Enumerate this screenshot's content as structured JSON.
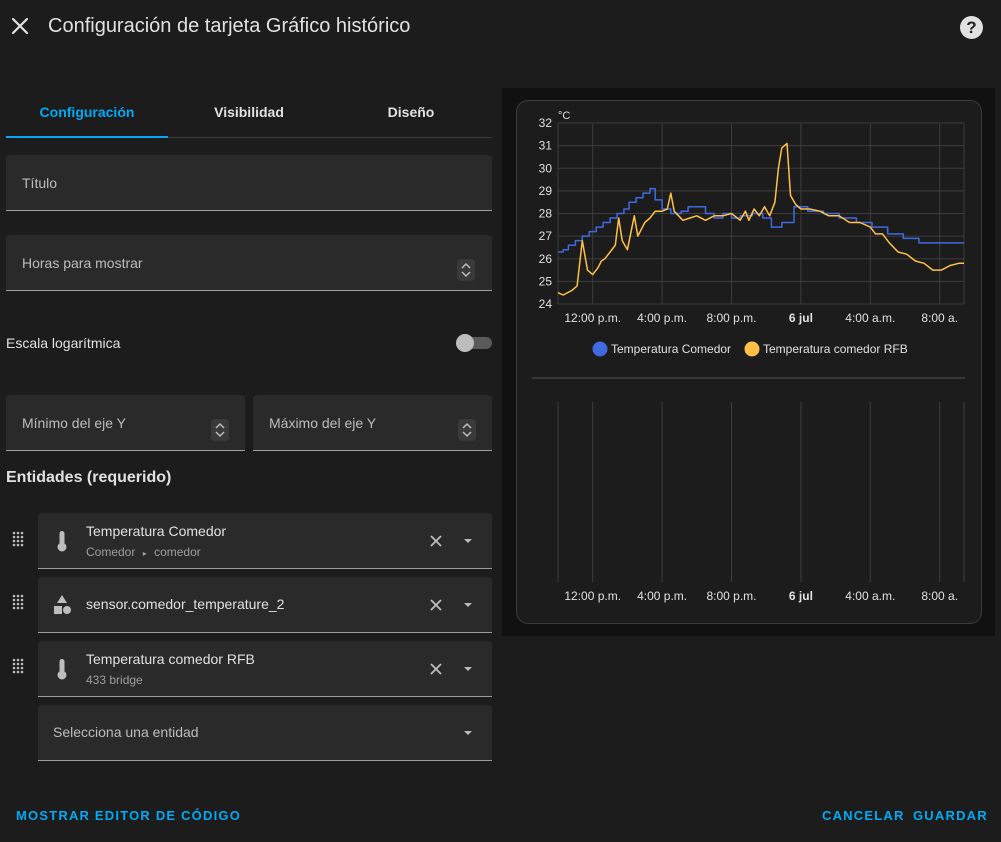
{
  "header": {
    "title": "Configuración de tarjeta Gráfico histórico"
  },
  "tabs": [
    "Configuración",
    "Visibilidad",
    "Diseño"
  ],
  "fields": {
    "title": {
      "label": "Título"
    },
    "hours": {
      "label": "Horas para mostrar"
    },
    "log_scale": {
      "label": "Escala logarítmica"
    },
    "y_min": {
      "label": "Mínimo del eje Y"
    },
    "y_max": {
      "label": "Máximo del eje Y"
    }
  },
  "entities": {
    "title": "Entidades (requerido)",
    "items": [
      {
        "name": "Temperatura Comedor",
        "area": "Comedor",
        "device": "comedor",
        "icon": "thermometer-icon"
      },
      {
        "name": "sensor.comedor_temperature_2",
        "icon": "shapes-icon"
      },
      {
        "name": "Temperatura comedor RFB",
        "subtitle": "433 bridge",
        "icon": "thermometer-icon"
      }
    ],
    "select_placeholder": "Selecciona una entidad"
  },
  "footer": {
    "code_editor": "MOSTRAR EDITOR DE CÓDIGO",
    "cancel": "CANCELAR",
    "save": "GUARDAR"
  },
  "colors": {
    "accent": "#03a9f4",
    "series1": "#4169e1",
    "series2": "#ffc145"
  },
  "chart_data": {
    "type": "line",
    "unit_label": "°C",
    "ylim": [
      24,
      32
    ],
    "yticks": [
      24,
      25,
      26,
      27,
      28,
      29,
      30,
      31,
      32
    ],
    "xlim": [
      0,
      23.4
    ],
    "xticks": [
      {
        "x": 2,
        "label": "12:00 p.m.",
        "bold": false
      },
      {
        "x": 6,
        "label": "4:00 p.m.",
        "bold": false
      },
      {
        "x": 10,
        "label": "8:00 p.m.",
        "bold": false
      },
      {
        "x": 14,
        "label": "6 jul",
        "bold": true
      },
      {
        "x": 18,
        "label": "4:00 a.m.",
        "bold": false
      },
      {
        "x": 22,
        "label": "8:00 a.",
        "bold": false
      }
    ],
    "series": [
      {
        "name": "Temperatura Comedor",
        "step": true,
        "points": [
          [
            0,
            26.3
          ],
          [
            0.3,
            26.4
          ],
          [
            0.6,
            26.6
          ],
          [
            1,
            26.8
          ],
          [
            1.4,
            27
          ],
          [
            1.8,
            27.2
          ],
          [
            2.2,
            27.4
          ],
          [
            2.6,
            27.6
          ],
          [
            3,
            27.8
          ],
          [
            3.4,
            28
          ],
          [
            3.8,
            28.2
          ],
          [
            4.1,
            28.5
          ],
          [
            4.5,
            28.7
          ],
          [
            4.9,
            28.9
          ],
          [
            5.3,
            29.1
          ],
          [
            5.6,
            28.6
          ],
          [
            6,
            28.2
          ],
          [
            6.5,
            28
          ],
          [
            7.1,
            28.1
          ],
          [
            7.5,
            28.3
          ],
          [
            8.5,
            28
          ],
          [
            9,
            27.8
          ],
          [
            9.5,
            28
          ],
          [
            10,
            27.8
          ],
          [
            10.5,
            27.9
          ],
          [
            11.2,
            28
          ],
          [
            11.8,
            27.8
          ],
          [
            12.3,
            27.4
          ],
          [
            12.9,
            27.6
          ],
          [
            13.6,
            28.3
          ],
          [
            14.4,
            28.1
          ],
          [
            15.3,
            28
          ],
          [
            16.2,
            27.8
          ],
          [
            17.2,
            27.6
          ],
          [
            18.1,
            27.4
          ],
          [
            19,
            27.1
          ],
          [
            19.9,
            26.9
          ],
          [
            20.8,
            26.7
          ],
          [
            23.4,
            26.7
          ]
        ]
      },
      {
        "name": "Temperatura comedor RFB",
        "step": false,
        "points": [
          [
            0,
            24.5
          ],
          [
            0.3,
            24.4
          ],
          [
            0.8,
            24.6
          ],
          [
            1.1,
            24.8
          ],
          [
            1.4,
            26.8
          ],
          [
            1.7,
            25.5
          ],
          [
            2,
            25.3
          ],
          [
            2.3,
            25.6
          ],
          [
            2.5,
            25.9
          ],
          [
            2.7,
            26
          ],
          [
            3,
            26.3
          ],
          [
            3.3,
            26.6
          ],
          [
            3.5,
            27.8
          ],
          [
            3.7,
            26.8
          ],
          [
            4,
            26.4
          ],
          [
            4.4,
            27.9
          ],
          [
            4.6,
            27
          ],
          [
            5,
            27.6
          ],
          [
            5.3,
            27.8
          ],
          [
            5.6,
            28.1
          ],
          [
            6,
            28.1
          ],
          [
            6.3,
            28.2
          ],
          [
            6.5,
            28.9
          ],
          [
            6.7,
            28.1
          ],
          [
            7.2,
            27.7
          ],
          [
            7.6,
            27.8
          ],
          [
            8,
            27.9
          ],
          [
            8.5,
            27.7
          ],
          [
            9,
            27.9
          ],
          [
            9.5,
            27.9
          ],
          [
            10,
            28
          ],
          [
            10.5,
            27.7
          ],
          [
            10.8,
            28.1
          ],
          [
            11,
            27.7
          ],
          [
            11.3,
            28.2
          ],
          [
            11.6,
            27.9
          ],
          [
            11.9,
            28.3
          ],
          [
            12.2,
            27.9
          ],
          [
            12.5,
            28.5
          ],
          [
            12.7,
            30
          ],
          [
            12.9,
            30.9
          ],
          [
            13.2,
            31.1
          ],
          [
            13.4,
            28.8
          ],
          [
            13.7,
            28.4
          ],
          [
            14,
            28.2
          ],
          [
            14.5,
            28.2
          ],
          [
            15.1,
            28.1
          ],
          [
            15.6,
            27.9
          ],
          [
            16.2,
            27.9
          ],
          [
            16.8,
            27.6
          ],
          [
            17.4,
            27.6
          ],
          [
            18,
            27.4
          ],
          [
            18.3,
            27.1
          ],
          [
            18.7,
            27.1
          ],
          [
            19.1,
            26.7
          ],
          [
            19.6,
            26.3
          ],
          [
            20.1,
            26.2
          ],
          [
            20.6,
            25.9
          ],
          [
            21.1,
            25.8
          ],
          [
            21.6,
            25.5
          ],
          [
            22.1,
            25.5
          ],
          [
            22.6,
            25.7
          ],
          [
            23.1,
            25.8
          ],
          [
            23.4,
            25.8
          ]
        ]
      }
    ],
    "legend": "bottom"
  }
}
